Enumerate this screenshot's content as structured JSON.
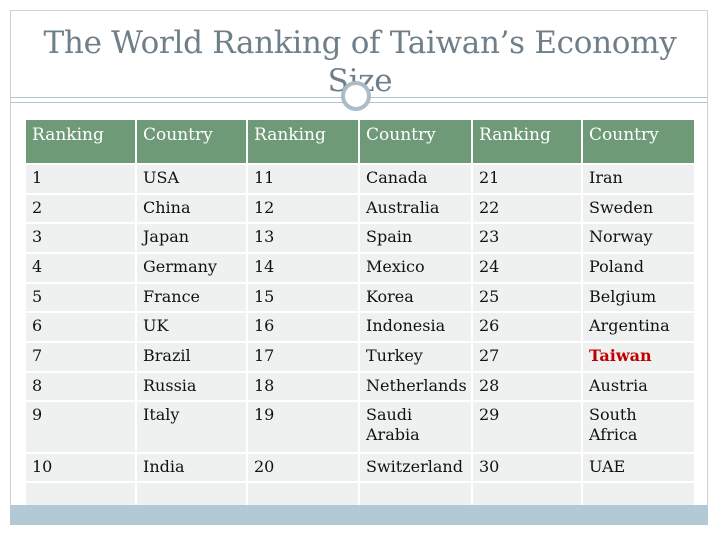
{
  "slide": {
    "title": "The World Ranking of  Taiwan’s Economy Size"
  },
  "table": {
    "headers": [
      "Ranking",
      "Country",
      "Ranking",
      "Country",
      "Ranking",
      "Country"
    ],
    "rows": [
      [
        "1",
        "USA",
        "11",
        "Canada",
        "21",
        "Iran"
      ],
      [
        "2",
        "China",
        "12",
        "Australia",
        "22",
        "Sweden"
      ],
      [
        "3",
        "Japan",
        "13",
        "Spain",
        "23",
        "Norway"
      ],
      [
        "4",
        "Germany",
        "14",
        "Mexico",
        "24",
        "Poland"
      ],
      [
        "5",
        "France",
        "15",
        "Korea",
        "25",
        "Belgium"
      ],
      [
        "6",
        "UK",
        "16",
        "Indonesia",
        "26",
        "Argentina"
      ],
      [
        "7",
        "Brazil",
        "17",
        "Turkey",
        "27",
        "Taiwan"
      ],
      [
        "8",
        "Russia",
        "18",
        "Netherlands",
        "28",
        "Austria"
      ],
      [
        "9",
        "Italy",
        "19",
        "Saudi Arabia",
        "29",
        "South Africa"
      ],
      [
        "10",
        "India",
        "20",
        "Switzerland",
        "30",
        "UAE"
      ],
      [
        "",
        "",
        "",
        "",
        "",
        ""
      ]
    ],
    "highlight_color": "#c00000",
    "header_color": "#6f9a77"
  }
}
